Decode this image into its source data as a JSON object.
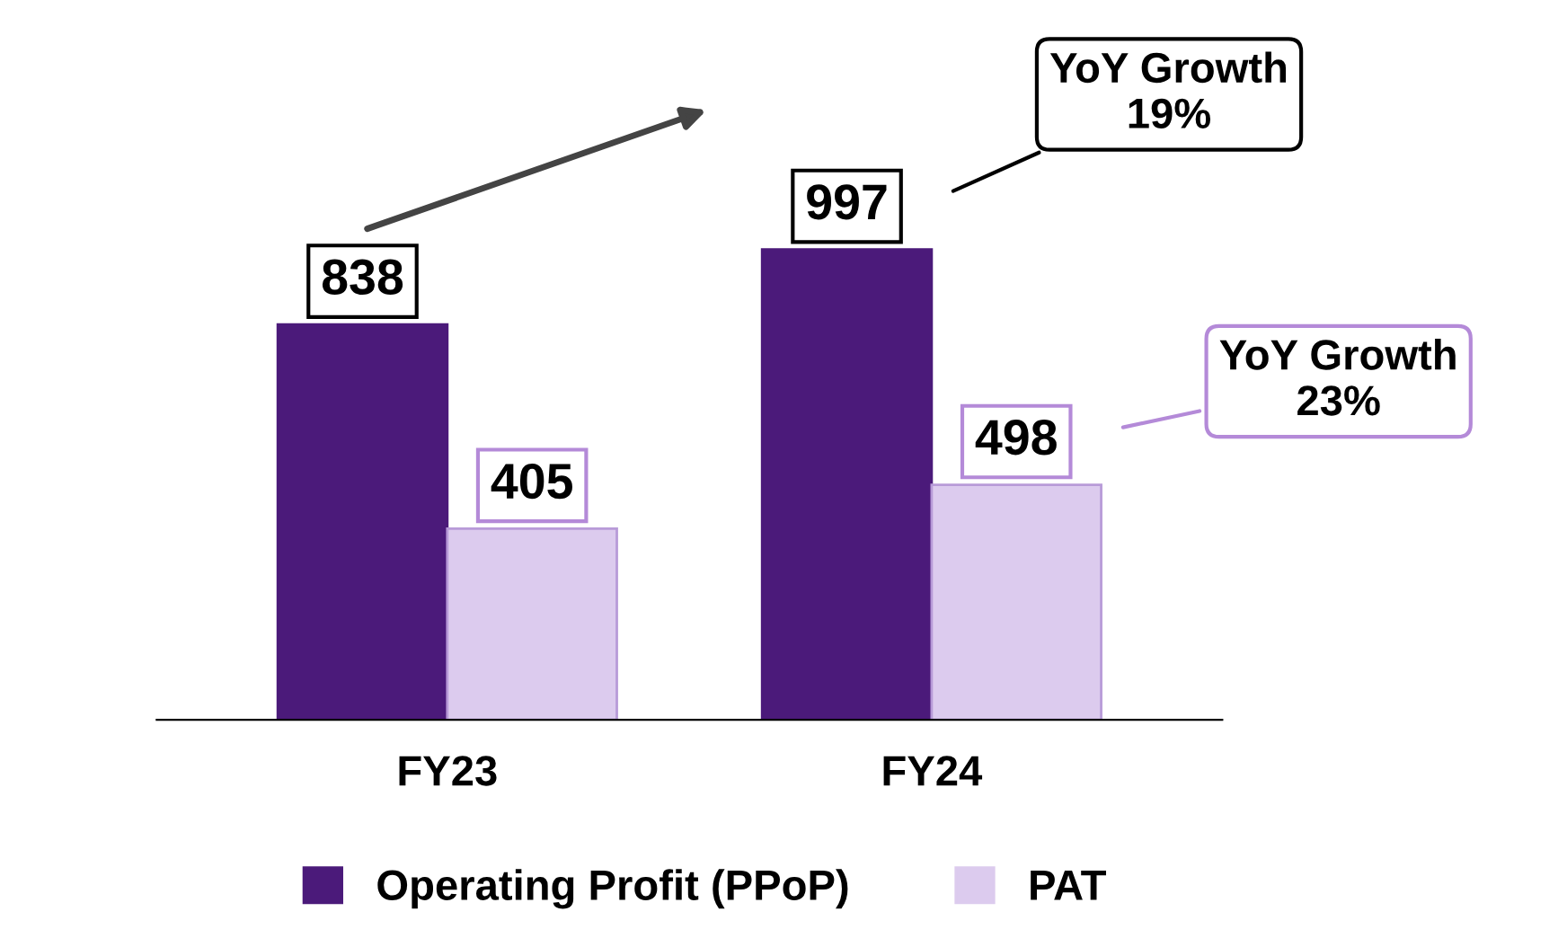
{
  "chart_data": {
    "type": "bar",
    "categories": [
      "FY23",
      "FY24"
    ],
    "series": [
      {
        "name": "Operating Profit (PPoP)",
        "color": "#4b1a7a",
        "values": [
          838,
          997
        ]
      },
      {
        "name": "PAT",
        "color": "#dccbee",
        "values": [
          405,
          498
        ]
      }
    ],
    "data_labels": true,
    "legend": "bottom",
    "grid": false,
    "annotations": [
      "YoY Growth\n19%",
      "YoY Growth\n23%"
    ]
  }
}
